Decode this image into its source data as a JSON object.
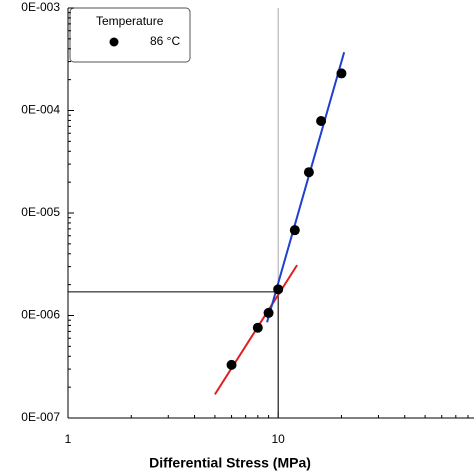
{
  "chart_data": {
    "type": "scatter",
    "x_label": "Differential Stress (MPa)",
    "xscale": "log",
    "yscale": "log",
    "xlim": [
      1,
      80
    ],
    "xticks": [
      1,
      10
    ],
    "ylim": [
      1e-07,
      0.001
    ],
    "yticks": [
      {
        "value": 1e-07,
        "label": "0E-007"
      },
      {
        "value": 1e-06,
        "label": "0E-006"
      },
      {
        "value": 1e-05,
        "label": "0E-005"
      },
      {
        "value": 0.0001,
        "label": "0E-004"
      },
      {
        "value": 0.001,
        "label": "0E-003"
      }
    ],
    "legend_title": "Temperature",
    "legend_position": "upper left",
    "series": [
      {
        "name": "86 °C",
        "color": "#000000",
        "label_color": "#1a1aff",
        "x": [
          6,
          8,
          9,
          10,
          12,
          14,
          16,
          20
        ],
        "values": [
          3.3e-07,
          7.6e-07,
          1.06e-06,
          1.8e-06,
          6.8e-06,
          2.5e-05,
          7.9e-05,
          0.00023
        ]
      }
    ],
    "fit_lines": [
      {
        "color": "#e02020",
        "x": [
          5,
          12.3
        ],
        "values": [
          1.7e-07,
          3.1e-06
        ]
      },
      {
        "color": "#1f3fd0",
        "x": [
          8.85,
          20.6
        ],
        "values": [
          8.6e-07,
          0.00037
        ]
      }
    ],
    "reference": {
      "x": 10,
      "y": 1.7e-06
    }
  }
}
